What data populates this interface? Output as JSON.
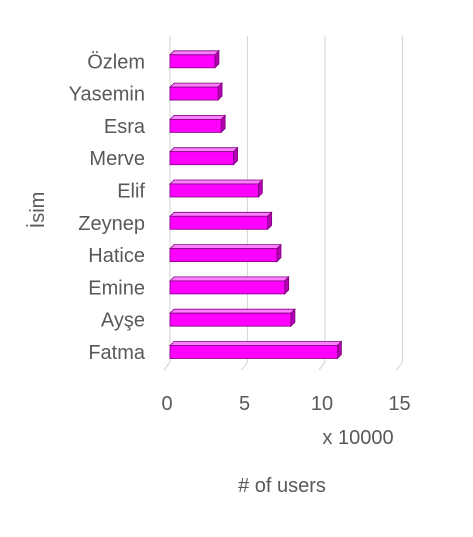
{
  "colors": {
    "bar_front": "#ff00ff",
    "bar_top": "#ff80ff",
    "bar_side": "#b300b3",
    "bar_outline": "#7f007f",
    "grid": "#d9d9d9",
    "text": "#595959"
  },
  "chart_data": {
    "type": "bar",
    "orientation": "horizontal",
    "style": "3d",
    "categories": [
      "Fatma",
      "Ayşe",
      "Emine",
      "Hatice",
      "Zeynep",
      "Elif",
      "Merve",
      "Esra",
      "Yasemin",
      "Özlem"
    ],
    "values": [
      10.8,
      7.8,
      7.4,
      6.9,
      6.3,
      5.7,
      4.1,
      3.3,
      3.1,
      2.9
    ],
    "xlabel": "# of users",
    "x_unit": "x 10000",
    "ylabel": "İsim",
    "xlim": [
      0,
      15
    ],
    "xticks": [
      "0",
      "5",
      "10",
      "15"
    ],
    "grid": true,
    "legend": "none"
  }
}
